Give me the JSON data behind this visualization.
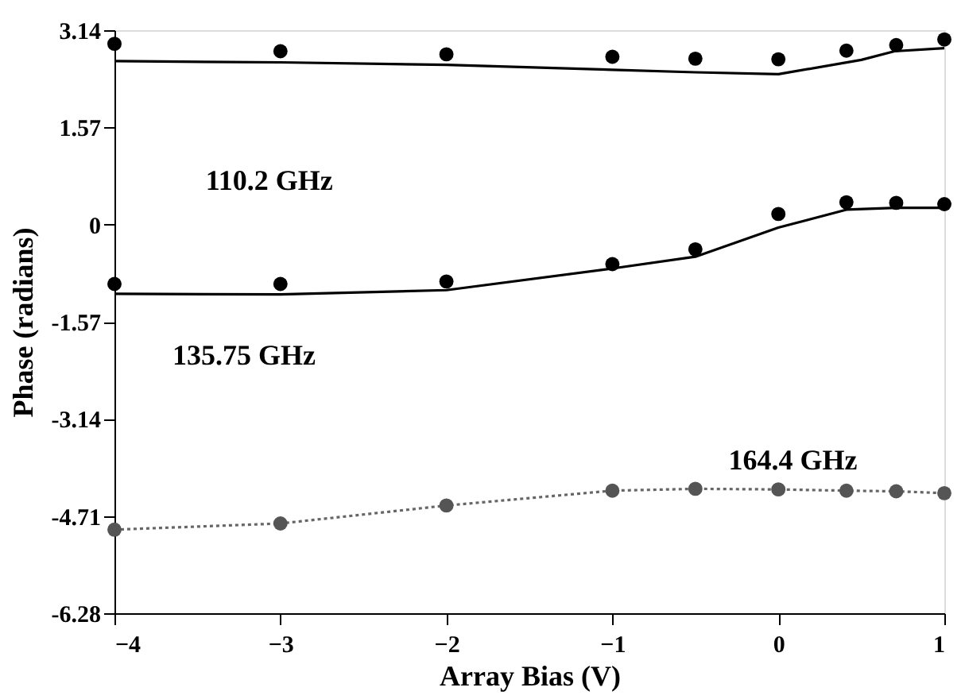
{
  "chart_data": {
    "type": "scatter",
    "xlabel": "Array Bias (V)",
    "ylabel": "Phase (radians)",
    "xlim": [
      -4,
      1
    ],
    "xticks": [
      -4,
      -3,
      -2,
      -1,
      0,
      1
    ],
    "ylim": [
      -6.28,
      3.14
    ],
    "yticks": [
      -6.28,
      -4.71,
      -3.14,
      -1.57,
      0,
      1.57,
      3.14
    ],
    "grid": false,
    "series": [
      {
        "type": "line",
        "color": "#000000",
        "line_style": "solid",
        "marker": "none",
        "x": [
          -4,
          -3,
          -2,
          -1,
          -0.5,
          0,
          0.5,
          0.7,
          1
        ],
        "values": [
          2.64,
          2.62,
          2.58,
          2.5,
          2.46,
          2.43,
          2.66,
          2.8,
          2.85
        ]
      },
      {
        "color": "#000000",
        "marker": "circle",
        "x": [
          -4,
          -3,
          -2,
          -1,
          -0.5,
          0,
          0.41,
          0.71,
          1
        ],
        "values": [
          2.92,
          2.8,
          2.75,
          2.71,
          2.68,
          2.67,
          2.81,
          2.9,
          2.99
        ]
      },
      {
        "type": "line",
        "color": "#000000",
        "line_style": "solid",
        "marker": "none",
        "x": [
          -4,
          -3,
          -2,
          -1,
          -0.5,
          0,
          0.41,
          0.71,
          1
        ],
        "values": [
          -1.12,
          -1.13,
          -1.06,
          -0.71,
          -0.52,
          -0.05,
          0.24,
          0.27,
          0.27
        ]
      },
      {
        "color": "#000000",
        "marker": "circle",
        "x": [
          -4,
          -3,
          -2,
          -1,
          -0.5,
          0,
          0.41,
          0.71,
          1
        ],
        "values": [
          -0.96,
          -0.96,
          -0.92,
          -0.64,
          -0.4,
          0.17,
          0.36,
          0.35,
          0.33
        ]
      },
      {
        "type": "line",
        "color": "#666666",
        "line_style": "dotted",
        "marker": "none",
        "x": [
          -4,
          -3,
          -2,
          -1,
          -0.5,
          0,
          0.41,
          0.71,
          1
        ],
        "values": [
          -4.93,
          -4.83,
          -4.54,
          -4.3,
          -4.27,
          -4.28,
          -4.3,
          -4.31,
          -4.34
        ]
      },
      {
        "color": "#555555",
        "marker": "circle",
        "x": [
          -4,
          -3,
          -2,
          -1,
          -0.5,
          0,
          0.41,
          0.71,
          1
        ],
        "values": [
          -4.93,
          -4.83,
          -4.54,
          -4.3,
          -4.27,
          -4.28,
          -4.3,
          -4.31,
          -4.34
        ]
      }
    ],
    "annotations": [
      "110.2  GHz",
      "135.75  GHz",
      "164.4  GHz"
    ]
  }
}
